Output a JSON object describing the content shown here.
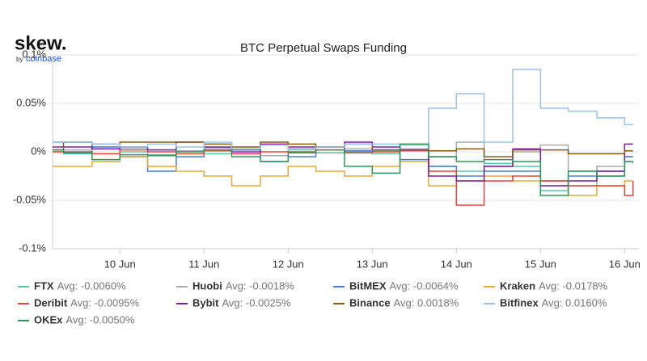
{
  "chart_data": {
    "type": "line",
    "step": true,
    "title": "BTC Perpetual Swaps Funding",
    "brand": {
      "name": "skew.",
      "by": "by",
      "company": "coinbase"
    },
    "x": [
      9.2,
      9.33,
      9.67,
      10,
      10.33,
      10.67,
      11,
      11.33,
      11.67,
      12,
      12.33,
      12.67,
      13,
      13.33,
      13.67,
      14,
      14.33,
      14.67,
      15,
      15.33,
      15.67,
      16,
      16.1
    ],
    "xlim": [
      9.2,
      16.17
    ],
    "xticks": [
      {
        "value": 10,
        "label": "10 Jun"
      },
      {
        "value": 11,
        "label": "11 Jun"
      },
      {
        "value": 12,
        "label": "12 Jun"
      },
      {
        "value": 13,
        "label": "13 Jun"
      },
      {
        "value": 14,
        "label": "14 Jun"
      },
      {
        "value": 15,
        "label": "15 Jun"
      },
      {
        "value": 16,
        "label": "16 Jun"
      }
    ],
    "ylim": [
      -0.1,
      0.1
    ],
    "yticks": [
      {
        "value": -0.1,
        "label": "-0.1%"
      },
      {
        "value": -0.05,
        "label": "-0.05%"
      },
      {
        "value": 0,
        "label": "0%"
      },
      {
        "value": 0.05,
        "label": "0.05%"
      },
      {
        "value": 0.1,
        "label": "0.1%"
      }
    ],
    "grid": true,
    "series": [
      {
        "name": "FTX",
        "legend_note": "Avg: -0.0060%",
        "color": "#5fc4a5",
        "values": [
          0,
          -0.002,
          0.003,
          0,
          -0.003,
          0.001,
          -0.002,
          0.002,
          -0.004,
          0.003,
          -0.001,
          0,
          -0.002,
          0.001,
          -0.015,
          -0.02,
          -0.012,
          -0.015,
          -0.04,
          -0.035,
          -0.025,
          -0.01,
          -0.012
        ]
      },
      {
        "name": "Huobi",
        "legend_note": "Avg: -0.0018%",
        "color": "#aaaaaa",
        "values": [
          0.002,
          0.002,
          0.005,
          0.004,
          0.002,
          0.001,
          0.004,
          0.003,
          -0.004,
          0.002,
          0.005,
          0.003,
          0.001,
          0.003,
          -0.005,
          0.01,
          -0.015,
          0,
          0.007,
          -0.02,
          -0.015,
          -0.005,
          -0.005
        ]
      },
      {
        "name": "BitMEX",
        "legend_note": "Avg: -0.0064%",
        "color": "#4a7fd1",
        "values": [
          0.01,
          0.01,
          0.005,
          -0.005,
          -0.02,
          -0.005,
          0.002,
          0.002,
          -0.01,
          -0.005,
          0.005,
          0.001,
          0.002,
          -0.008,
          -0.015,
          -0.025,
          -0.02,
          -0.02,
          -0.03,
          -0.025,
          -0.02,
          -0.005,
          -0.005
        ]
      },
      {
        "name": "Kraken",
        "legend_note": "Avg: -0.0178%",
        "color": "#e8a93a",
        "values": [
          -0.015,
          -0.015,
          -0.01,
          -0.005,
          -0.015,
          -0.02,
          -0.025,
          -0.035,
          -0.025,
          -0.015,
          -0.02,
          -0.025,
          -0.015,
          -0.01,
          -0.035,
          -0.03,
          -0.025,
          -0.03,
          -0.035,
          -0.045,
          -0.035,
          -0.03,
          -0.03
        ]
      },
      {
        "name": "Deribit",
        "legend_note": "Avg: -0.0095%",
        "color": "#e8453c",
        "values": [
          0,
          -0.001,
          -0.002,
          0.002,
          0,
          -0.002,
          0.001,
          -0.002,
          0,
          -0.001,
          0.002,
          -0.001,
          0,
          0.001,
          -0.02,
          -0.055,
          -0.03,
          -0.025,
          -0.03,
          -0.035,
          -0.035,
          -0.045,
          -0.03
        ]
      },
      {
        "name": "Bybit",
        "legend_note": "Avg: -0.0025%",
        "color": "#7a1fa2",
        "values": [
          0.005,
          0.005,
          0.003,
          0.005,
          0.002,
          0.01,
          0.005,
          0,
          0.008,
          0.005,
          0.005,
          0.01,
          0.005,
          0.002,
          -0.025,
          -0.03,
          -0.015,
          0.003,
          -0.035,
          -0.03,
          -0.02,
          0.008,
          0.008
        ]
      },
      {
        "name": "Binance",
        "legend_note": "Avg: 0.0018%",
        "color": "#8a5a19",
        "values": [
          0.002,
          0.01,
          0.008,
          0.01,
          0.01,
          0.01,
          0.008,
          0.005,
          0.01,
          0.008,
          0.005,
          0.008,
          0.002,
          0.002,
          0.001,
          0.003,
          -0.005,
          0.002,
          0.002,
          -0.002,
          -0.002,
          0.001,
          0.001
        ]
      },
      {
        "name": "Bitfinex",
        "legend_note": "Avg: 0.0160%",
        "color": "#9cc3ea",
        "values": [
          0.01,
          0.01,
          0.008,
          0.005,
          0.008,
          0.005,
          0.01,
          0.003,
          0.007,
          0.002,
          0.005,
          0.008,
          0.008,
          0.007,
          0.045,
          0.06,
          0.01,
          0.085,
          0.045,
          0.042,
          0.035,
          0.028,
          0.028
        ]
      },
      {
        "name": "OKEx",
        "legend_note": "Avg: -0.0050%",
        "color": "#2a9a5a",
        "values": [
          0.002,
          0,
          -0.008,
          -0.003,
          -0.004,
          0,
          0.002,
          -0.005,
          -0.01,
          0,
          0.002,
          -0.015,
          -0.022,
          0.008,
          -0.005,
          -0.01,
          -0.008,
          -0.01,
          -0.045,
          -0.02,
          -0.025,
          -0.01,
          -0.01
        ]
      }
    ]
  }
}
